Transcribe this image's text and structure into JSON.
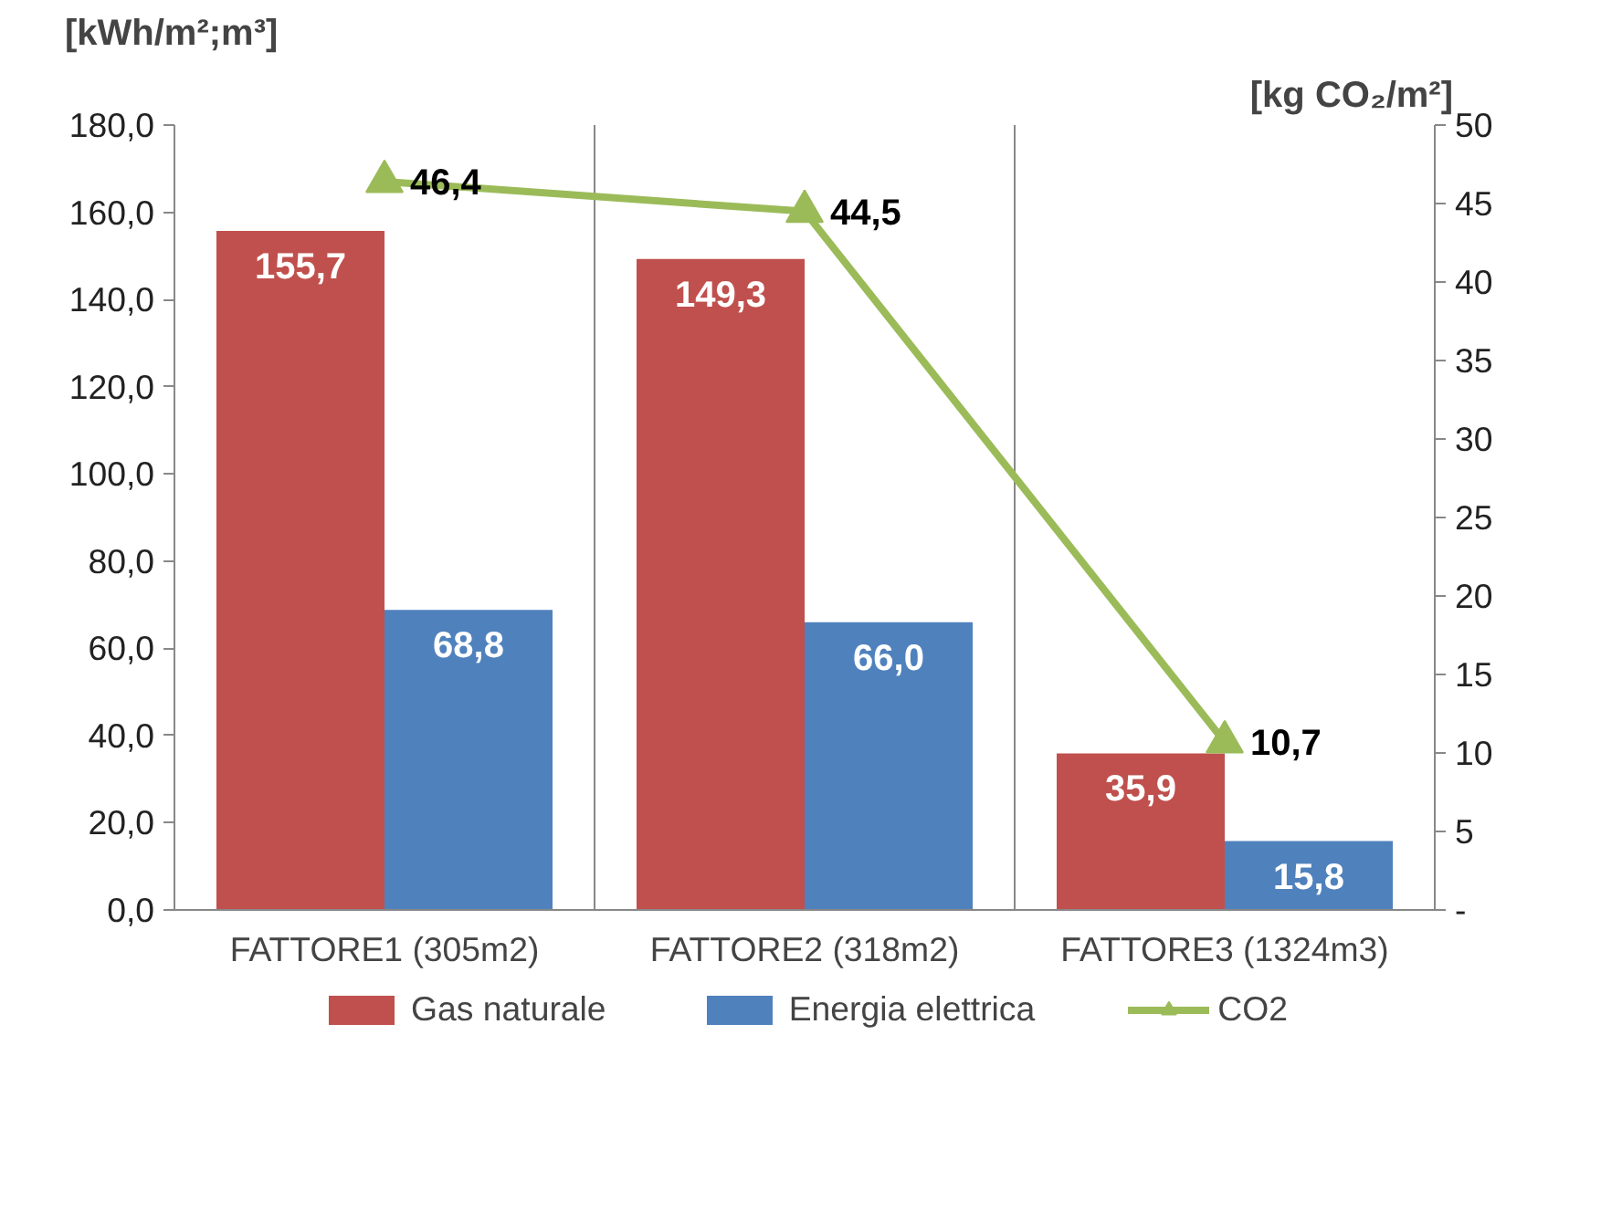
{
  "chart_data": {
    "type": "bar",
    "ylabel": "[kWh/m²;m³]",
    "y2label": "[kg CO₂/m²]",
    "categories": [
      "FATTORE1 (305m2)",
      "FATTORE2 (318m2)",
      "FATTORE3 (1324m3)"
    ],
    "series": [
      {
        "name": "Gas naturale",
        "color": "#c0504d",
        "values": [
          155.7,
          149.3,
          35.9
        ],
        "value_labels": [
          "155,7",
          "149,3",
          "35,9"
        ]
      },
      {
        "name": "Energia elettrica",
        "color": "#4f81bd",
        "values": [
          68.8,
          66.0,
          15.8
        ],
        "value_labels": [
          "68,8",
          "66,0",
          "15,8"
        ]
      },
      {
        "name": "CO2",
        "type": "line",
        "axis": "y2",
        "color": "#9bbb59",
        "marker": "triangle",
        "values": [
          46.4,
          44.5,
          10.7
        ],
        "value_labels": [
          "46,4",
          "44,5",
          "10,7"
        ]
      }
    ],
    "ylim": [
      0,
      180
    ],
    "yticks": [
      {
        "value": 0,
        "label": "0,0"
      },
      {
        "value": 20,
        "label": "20,0"
      },
      {
        "value": 40,
        "label": "40,0"
      },
      {
        "value": 60,
        "label": "60,0"
      },
      {
        "value": 80,
        "label": "80,0"
      },
      {
        "value": 100,
        "label": "100,0"
      },
      {
        "value": 120,
        "label": "120,0"
      },
      {
        "value": 140,
        "label": "140,0"
      },
      {
        "value": 160,
        "label": "160,0"
      },
      {
        "value": 180,
        "label": "180,0"
      }
    ],
    "y2lim": [
      0,
      50
    ],
    "y2ticks": [
      {
        "value": 0,
        "label": "-"
      },
      5,
      10,
      15,
      20,
      25,
      30,
      35,
      40,
      45,
      50
    ],
    "grid": "x",
    "legend": "bottom"
  }
}
